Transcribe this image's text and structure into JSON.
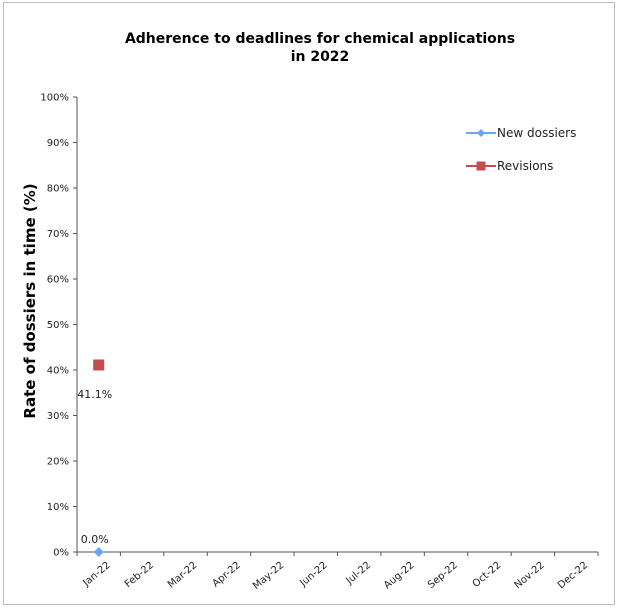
{
  "chart_data": {
    "type": "line",
    "title": "Adherence to deadlines for chemical applications in 2022",
    "title_lines": [
      "Adherence to deadlines for chemical applications",
      "in 2022"
    ],
    "xlabel": "",
    "ylabel": "Rate of dossiers in time (%)",
    "categories": [
      "Jan-22",
      "Feb-22",
      "Mar-22",
      "Apr-22",
      "May-22",
      "Jun-22",
      "Jul-22",
      "Aug-22",
      "Sep-22",
      "Oct-22",
      "Nov-22",
      "Dec-22"
    ],
    "y_ticks": [
      "0%",
      "10%",
      "20%",
      "30%",
      "40%",
      "50%",
      "60%",
      "70%",
      "80%",
      "90%",
      "100%"
    ],
    "ylim": [
      0,
      100
    ],
    "grid": false,
    "legend_position": "top-right",
    "series": [
      {
        "name": "New dossiers",
        "color": "#6aa6f0",
        "marker": "diamond",
        "values": [
          0.0,
          null,
          null,
          null,
          null,
          null,
          null,
          null,
          null,
          null,
          null,
          null
        ],
        "labels": [
          "0.0%"
        ]
      },
      {
        "name": "Revisions",
        "color": "#c0504d",
        "marker": "square",
        "values": [
          41.1,
          null,
          null,
          null,
          null,
          null,
          null,
          null,
          null,
          null,
          null,
          null
        ],
        "labels": [
          "41.1%"
        ]
      }
    ]
  }
}
